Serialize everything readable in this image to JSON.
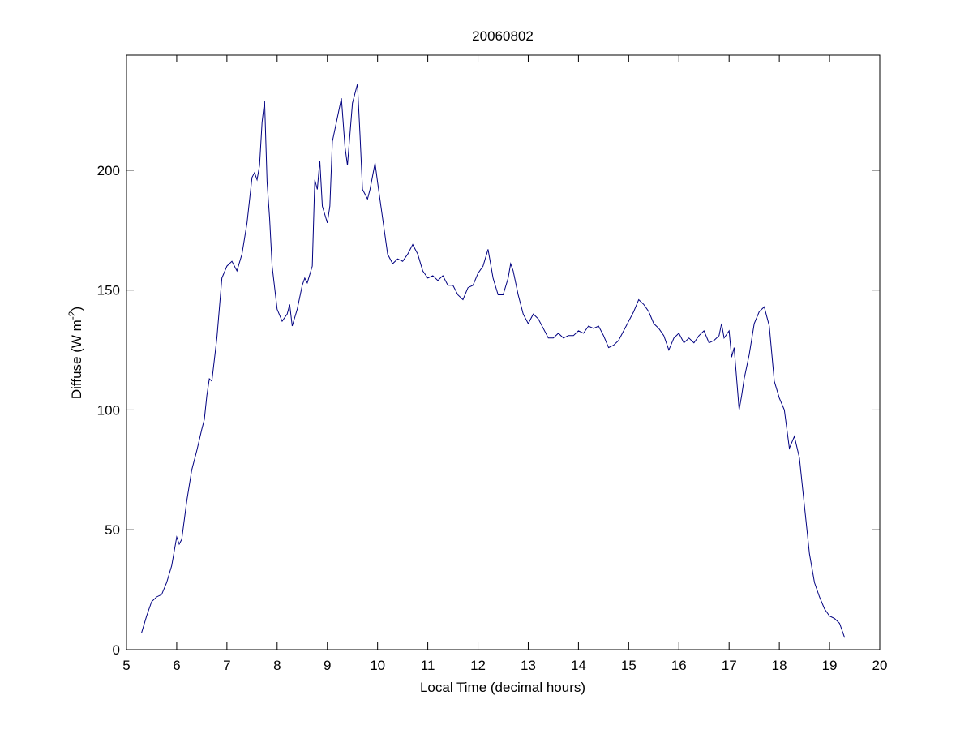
{
  "chart_data": {
    "type": "line",
    "title": "20060802",
    "xlabel": "Local Time (decimal hours)",
    "ylabel": {
      "text": "Diffuse (W m",
      "superscript": "-2",
      "suffix": ")"
    },
    "color": "#000080",
    "xlim": [
      5,
      20
    ],
    "xticks": [
      5,
      6,
      7,
      8,
      9,
      10,
      11,
      12,
      13,
      14,
      15,
      16,
      17,
      18,
      19,
      20
    ],
    "ylim": [
      0,
      248
    ],
    "yticks": [
      0,
      50,
      100,
      150,
      200
    ],
    "x": [
      5.3,
      5.4,
      5.5,
      5.6,
      5.7,
      5.8,
      5.9,
      6.0,
      6.05,
      6.1,
      6.2,
      6.3,
      6.4,
      6.5,
      6.55,
      6.6,
      6.65,
      6.7,
      6.8,
      6.9,
      7.0,
      7.1,
      7.2,
      7.3,
      7.4,
      7.5,
      7.55,
      7.6,
      7.65,
      7.7,
      7.75,
      7.8,
      7.85,
      7.9,
      8.0,
      8.1,
      8.2,
      8.25,
      8.3,
      8.4,
      8.5,
      8.55,
      8.6,
      8.7,
      8.75,
      8.8,
      8.85,
      8.9,
      9.0,
      9.05,
      9.1,
      9.2,
      9.28,
      9.35,
      9.4,
      9.5,
      9.55,
      9.6,
      9.65,
      9.7,
      9.8,
      9.85,
      9.95,
      10.0,
      10.1,
      10.2,
      10.3,
      10.4,
      10.5,
      10.6,
      10.7,
      10.8,
      10.9,
      11.0,
      11.1,
      11.2,
      11.3,
      11.4,
      11.5,
      11.6,
      11.7,
      11.8,
      11.9,
      12.0,
      12.1,
      12.2,
      12.3,
      12.4,
      12.5,
      12.6,
      12.65,
      12.7,
      12.8,
      12.9,
      13.0,
      13.1,
      13.2,
      13.3,
      13.4,
      13.5,
      13.6,
      13.7,
      13.8,
      13.9,
      14.0,
      14.1,
      14.2,
      14.3,
      14.4,
      14.5,
      14.6,
      14.7,
      14.8,
      14.9,
      15.0,
      15.1,
      15.2,
      15.3,
      15.4,
      15.5,
      15.6,
      15.7,
      15.8,
      15.9,
      16.0,
      16.1,
      16.2,
      16.3,
      16.4,
      16.5,
      16.6,
      16.7,
      16.8,
      16.85,
      16.9,
      17.0,
      17.05,
      17.1,
      17.2,
      17.25,
      17.3,
      17.4,
      17.5,
      17.6,
      17.7,
      17.8,
      17.9,
      18.0,
      18.1,
      18.2,
      18.3,
      18.4,
      18.5,
      18.6,
      18.7,
      18.8,
      18.9,
      19.0,
      19.1,
      19.2,
      19.3
    ],
    "y": [
      7,
      14,
      20,
      22,
      23,
      28,
      35,
      47,
      44,
      46,
      62,
      75,
      83,
      92,
      96,
      106,
      113,
      112,
      130,
      155,
      160,
      162,
      158,
      165,
      178,
      197,
      199,
      196,
      202,
      220,
      229,
      195,
      180,
      160,
      142,
      137,
      140,
      144,
      135,
      142,
      152,
      155,
      153,
      160,
      196,
      192,
      204,
      185,
      178,
      185,
      212,
      222,
      230,
      210,
      202,
      228,
      232,
      236,
      215,
      192,
      188,
      192,
      203,
      195,
      180,
      165,
      161,
      163,
      162,
      165,
      169,
      165,
      158,
      155,
      156,
      154,
      156,
      152,
      152,
      148,
      146,
      151,
      152,
      157,
      160,
      167,
      155,
      148,
      148,
      155,
      161,
      158,
      148,
      140,
      136,
      140,
      138,
      134,
      130,
      130,
      132,
      130,
      131,
      131,
      133,
      132,
      135,
      134,
      135,
      131,
      126,
      127,
      129,
      133,
      137,
      141,
      146,
      144,
      141,
      136,
      134,
      131,
      125,
      130,
      132,
      128,
      130,
      128,
      131,
      133,
      128,
      129,
      131,
      136,
      130,
      133,
      122,
      126,
      100,
      106,
      113,
      123,
      136,
      141,
      143,
      135,
      112,
      105,
      100,
      84,
      89,
      80,
      60,
      40,
      28,
      22,
      17,
      14,
      13,
      11,
      5
    ]
  }
}
